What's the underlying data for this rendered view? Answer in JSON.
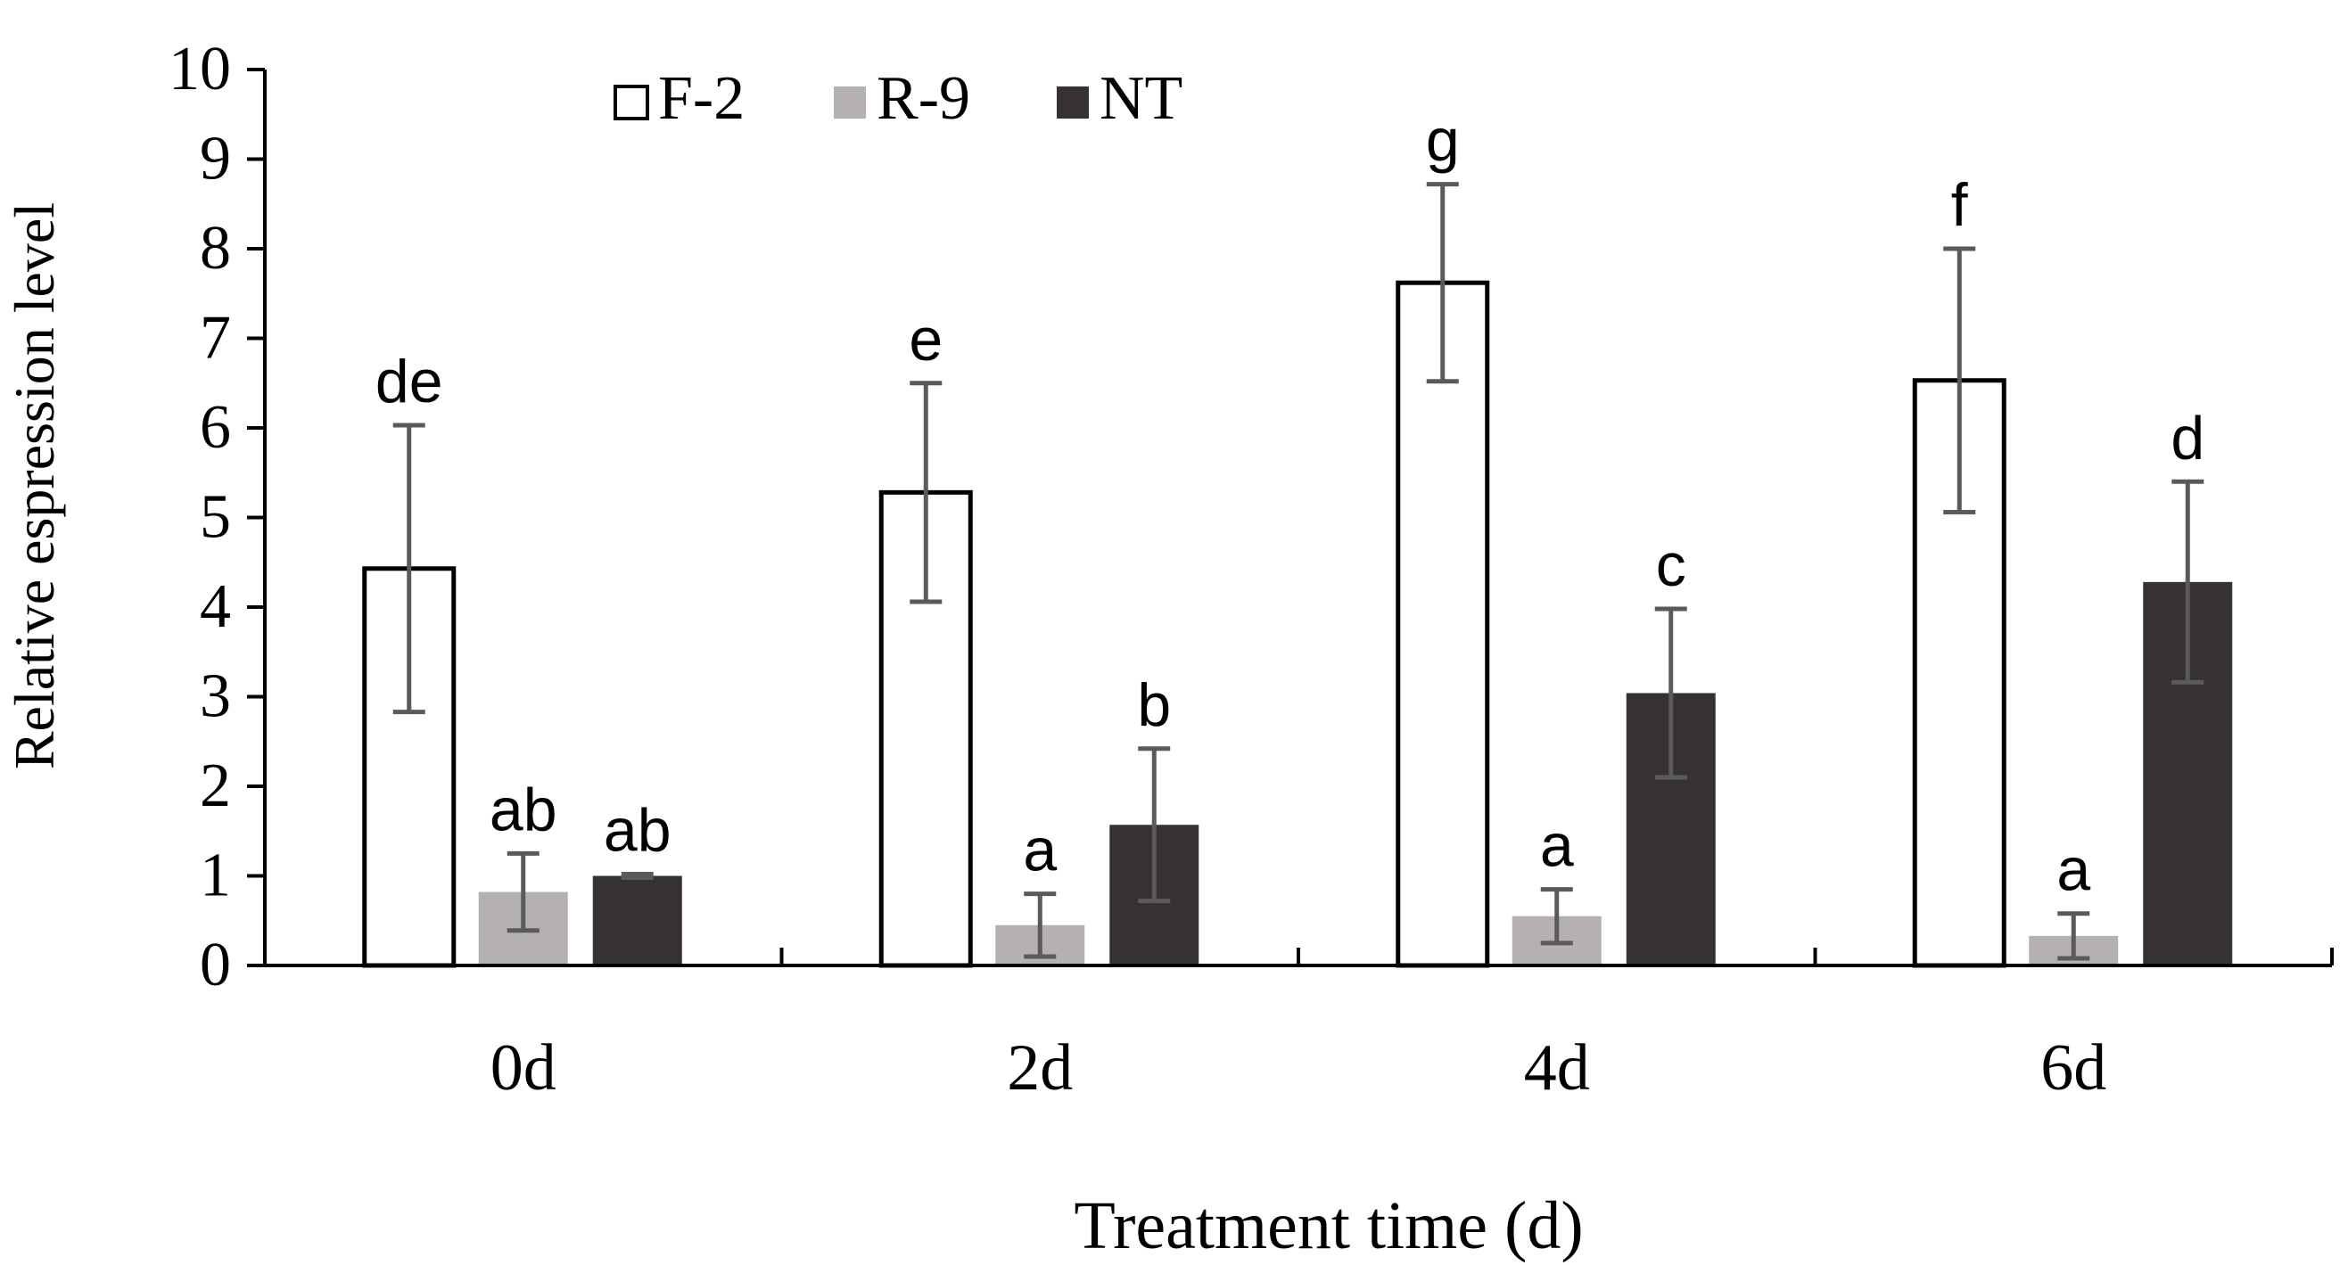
{
  "chart_data": {
    "type": "bar",
    "title": "",
    "xlabel": "Treatment time (d)",
    "ylabel": "Relative espression level",
    "ylim": [
      0,
      10
    ],
    "yticks": [
      "0",
      "1",
      "2",
      "3",
      "4",
      "5",
      "6",
      "7",
      "8",
      "9",
      "10"
    ],
    "categories": [
      "0d",
      "2d",
      "4d",
      "6d"
    ],
    "legend_position": "top-left",
    "series": [
      {
        "name": "F-2",
        "color": "#ffffff",
        "stroke": "#000000",
        "values": [
          4.43,
          5.28,
          7.62,
          6.53
        ],
        "errors": [
          1.6,
          1.22,
          1.1,
          1.47
        ],
        "letters": [
          "de",
          "e",
          "g",
          "f"
        ]
      },
      {
        "name": "R-9",
        "color": "#b5b1b1",
        "stroke": "none",
        "values": [
          0.82,
          0.45,
          0.55,
          0.33
        ],
        "errors": [
          0.43,
          0.35,
          0.3,
          0.25
        ],
        "letters": [
          "ab",
          "a",
          "a",
          "a"
        ]
      },
      {
        "name": "NT",
        "color": "#373232",
        "stroke": "none",
        "values": [
          1.0,
          1.57,
          3.04,
          4.28
        ],
        "errors": [
          0.02,
          0.85,
          0.94,
          1.12
        ],
        "letters": [
          "ab",
          "b",
          "c",
          "d"
        ]
      }
    ]
  }
}
